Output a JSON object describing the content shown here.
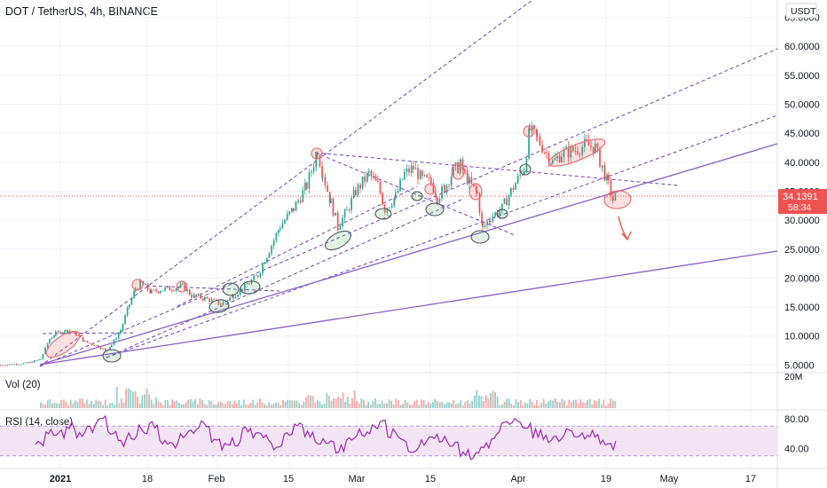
{
  "header": {
    "title": "DOT / TetherUS, 4h, BINANCE"
  },
  "price_axis": {
    "currency": "USDT",
    "ticks": [
      "65.0000",
      "60.0000",
      "55.0000",
      "50.0000",
      "45.0000",
      "40.0000",
      "35.0000",
      "30.0000",
      "25.0000",
      "20.0000",
      "15.0000",
      "10.0000",
      "5.0000"
    ],
    "current_price": "34.1391",
    "countdown": "58:34"
  },
  "volume_pane": {
    "label": "Vol (20)",
    "axis_tick": "20M"
  },
  "rsi_pane": {
    "label": "RSI (14, close)",
    "ticks": [
      "80.00",
      "40.00"
    ]
  },
  "time_axis": {
    "labels": [
      "2021",
      "18",
      "Feb",
      "15",
      "Mar",
      "15",
      "Apr",
      "19",
      "May",
      "17"
    ]
  },
  "colors": {
    "up": "#26a69a",
    "down": "#ef5350",
    "trend_solid": "#8e5bc9",
    "trend_dashed": "#6f42c1",
    "rsi": "#9c27b0",
    "rsi_band": "#f3e5f5",
    "circle_red": "#e57373",
    "circle_green": "#66bb6a"
  },
  "chart_data": [
    {
      "type": "candlestick",
      "title": "DOT / TetherUS, 4h, BINANCE",
      "ylabel": "USDT",
      "ylim": [
        4,
        70
      ],
      "x": [
        "2021",
        "18",
        "Feb",
        "15",
        "Mar",
        "15",
        "Apr",
        "19",
        "May",
        "17"
      ],
      "series": [
        {
          "values": [
            [
              0,
              5.0
            ],
            [
              10,
              5.1
            ],
            [
              30,
              5.3
            ],
            [
              45,
              6.0
            ],
            [
              55,
              9.5
            ],
            [
              62,
              10.5
            ],
            [
              75,
              11.0
            ],
            [
              85,
              10.3
            ],
            [
              95,
              9.0
            ],
            [
              110,
              8.2
            ],
            [
              118,
              7.5
            ],
            [
              125,
              8.5
            ],
            [
              135,
              11
            ],
            [
              145,
              15.5
            ],
            [
              152,
              18.2
            ],
            [
              158,
              19.2
            ],
            [
              170,
              17.5
            ],
            [
              180,
              18.0
            ],
            [
              195,
              18.3
            ],
            [
              205,
              18.6
            ],
            [
              215,
              17.0
            ],
            [
              230,
              16.5
            ],
            [
              248,
              15.5
            ],
            [
              262,
              17.0
            ],
            [
              275,
              18.5
            ],
            [
              290,
              20.5
            ],
            [
              300,
              24.0
            ],
            [
              315,
              29.0
            ],
            [
              330,
              32.0
            ],
            [
              345,
              36.0
            ],
            [
              357,
              42.0
            ],
            [
              363,
              38.0
            ],
            [
              372,
              33.0
            ],
            [
              380,
              29.0
            ],
            [
              390,
              31.5
            ],
            [
              400,
              35.0
            ],
            [
              415,
              38.0
            ],
            [
              425,
              36.0
            ],
            [
              433,
              32.0
            ],
            [
              445,
              34.0
            ],
            [
              455,
              38.0
            ],
            [
              465,
              39.0
            ],
            [
              475,
              37.0
            ],
            [
              485,
              36.5
            ],
            [
              492,
              34.0
            ],
            [
              500,
              35.5
            ],
            [
              510,
              38.5
            ],
            [
              518,
              39.5
            ],
            [
              528,
              36.5
            ],
            [
              537,
              34.5
            ],
            [
              543,
              28.5
            ],
            [
              552,
              30.5
            ],
            [
              565,
              32.0
            ],
            [
              575,
              35.0
            ],
            [
              590,
              39.0
            ],
            [
              596,
              45.5
            ],
            [
              605,
              44.0
            ],
            [
              615,
              41.5
            ],
            [
              622,
              40.0
            ],
            [
              632,
              41.5
            ],
            [
              645,
              42.0
            ],
            [
              660,
              43.0
            ],
            [
              670,
              42.5
            ],
            [
              678,
              39.0
            ],
            [
              685,
              36.0
            ],
            [
              690,
              33.5
            ],
            [
              694,
              34.1
            ]
          ]
        }
      ],
      "annotations": {
        "trend_lines": "purple solid and dashed trend lines",
        "arrow": "red down arrow"
      }
    },
    {
      "type": "bar",
      "title": "Vol (20)",
      "ylabel": "20M"
    },
    {
      "type": "line",
      "title": "RSI (14, close)",
      "ylim": [
        20,
        100
      ],
      "levels": [
        70,
        30
      ],
      "series": [
        {
          "values": [
            50,
            62,
            58,
            70,
            55,
            65,
            78,
            60,
            48,
            55,
            66,
            70,
            52,
            45,
            58,
            62,
            72,
            55,
            40,
            48,
            65,
            60,
            52,
            44,
            58,
            70,
            62,
            50,
            45,
            38,
            52,
            60,
            66,
            72,
            60,
            52,
            40,
            48,
            56,
            50,
            42,
            36,
            28,
            44,
            58,
            72,
            80,
            70,
            60,
            52,
            56,
            62,
            60,
            58,
            52,
            40,
            44
          ]
        }
      ]
    }
  ]
}
